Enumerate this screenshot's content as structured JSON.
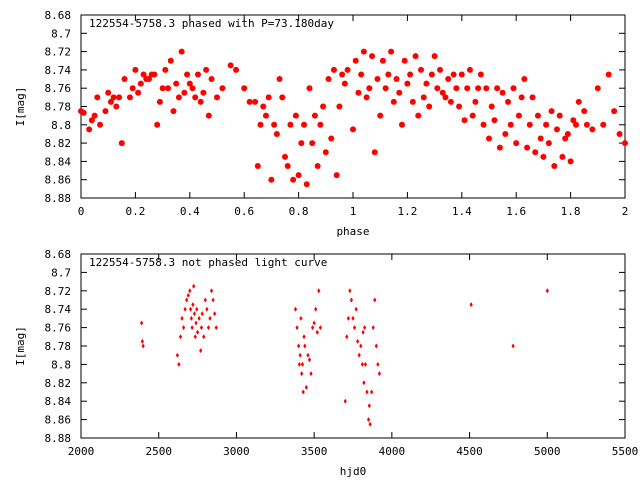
{
  "chart_data": [
    {
      "type": "scatter",
      "title": "122554-5758.3 phased with P=73.180day",
      "xlabel": "phase",
      "ylabel": "I[mag]",
      "xlim": [
        0,
        2
      ],
      "ylim": [
        8.88,
        8.68
      ],
      "y_inverted": true,
      "x_ticks": [
        0,
        0.2,
        0.4,
        0.6,
        0.8,
        1,
        1.2,
        1.4,
        1.6,
        1.8,
        2
      ],
      "x_tick_labels": [
        "0",
        "0.2",
        "0.4",
        "0.6",
        "0.8",
        "1",
        "1.2",
        "1.4",
        "1.6",
        "1.8",
        "2"
      ],
      "y_ticks": [
        8.68,
        8.7,
        8.72,
        8.74,
        8.76,
        8.78,
        8.8,
        8.82,
        8.84,
        8.86,
        8.88
      ],
      "y_tick_labels": [
        "8.68",
        "8.7",
        "8.72",
        "8.74",
        "8.76",
        "8.78",
        "8.8",
        "8.82",
        "8.84",
        "8.86",
        "8.88"
      ],
      "grid": false,
      "marker_color": "#ff0000",
      "points": [
        [
          0.0,
          8.785
        ],
        [
          0.01,
          8.787
        ],
        [
          0.03,
          8.805
        ],
        [
          0.04,
          8.795
        ],
        [
          0.05,
          8.79
        ],
        [
          0.06,
          8.77
        ],
        [
          0.07,
          8.8
        ],
        [
          0.09,
          8.785
        ],
        [
          0.1,
          8.765
        ],
        [
          0.11,
          8.775
        ],
        [
          0.12,
          8.77
        ],
        [
          0.13,
          8.78
        ],
        [
          0.14,
          8.77
        ],
        [
          0.15,
          8.82
        ],
        [
          0.16,
          8.75
        ],
        [
          0.18,
          8.77
        ],
        [
          0.19,
          8.76
        ],
        [
          0.2,
          8.74
        ],
        [
          0.21,
          8.765
        ],
        [
          0.22,
          8.755
        ],
        [
          0.23,
          8.745
        ],
        [
          0.24,
          8.75
        ],
        [
          0.25,
          8.75
        ],
        [
          0.26,
          8.745
        ],
        [
          0.27,
          8.745
        ],
        [
          0.28,
          8.8
        ],
        [
          0.29,
          8.775
        ],
        [
          0.3,
          8.76
        ],
        [
          0.31,
          8.74
        ],
        [
          0.32,
          8.76
        ],
        [
          0.33,
          8.73
        ],
        [
          0.34,
          8.785
        ],
        [
          0.35,
          8.755
        ],
        [
          0.36,
          8.77
        ],
        [
          0.37,
          8.72
        ],
        [
          0.38,
          8.765
        ],
        [
          0.39,
          8.745
        ],
        [
          0.4,
          8.755
        ],
        [
          0.41,
          8.76
        ],
        [
          0.42,
          8.77
        ],
        [
          0.43,
          8.745
        ],
        [
          0.44,
          8.775
        ],
        [
          0.45,
          8.765
        ],
        [
          0.46,
          8.74
        ],
        [
          0.47,
          8.79
        ],
        [
          0.48,
          8.75
        ],
        [
          0.5,
          8.77
        ],
        [
          0.52,
          8.76
        ],
        [
          0.55,
          8.735
        ],
        [
          0.57,
          8.74
        ],
        [
          0.6,
          8.76
        ],
        [
          0.62,
          8.775
        ],
        [
          0.64,
          8.775
        ],
        [
          0.65,
          8.845
        ],
        [
          0.66,
          8.8
        ],
        [
          0.67,
          8.78
        ],
        [
          0.68,
          8.79
        ],
        [
          0.69,
          8.77
        ],
        [
          0.7,
          8.86
        ],
        [
          0.71,
          8.8
        ],
        [
          0.72,
          8.81
        ],
        [
          0.73,
          8.75
        ],
        [
          0.74,
          8.77
        ],
        [
          0.75,
          8.835
        ],
        [
          0.76,
          8.845
        ],
        [
          0.77,
          8.8
        ],
        [
          0.78,
          8.86
        ],
        [
          0.79,
          8.79
        ],
        [
          0.8,
          8.855
        ],
        [
          0.81,
          8.82
        ],
        [
          0.82,
          8.8
        ],
        [
          0.83,
          8.865
        ],
        [
          0.84,
          8.76
        ],
        [
          0.85,
          8.82
        ],
        [
          0.86,
          8.79
        ],
        [
          0.87,
          8.845
        ],
        [
          0.88,
          8.8
        ],
        [
          0.89,
          8.78
        ],
        [
          0.9,
          8.83
        ],
        [
          0.91,
          8.75
        ],
        [
          0.92,
          8.815
        ],
        [
          0.93,
          8.74
        ],
        [
          0.94,
          8.855
        ],
        [
          0.95,
          8.78
        ],
        [
          0.96,
          8.745
        ],
        [
          0.97,
          8.755
        ],
        [
          0.98,
          8.74
        ],
        [
          1.0,
          8.805
        ],
        [
          1.01,
          8.73
        ],
        [
          1.02,
          8.765
        ],
        [
          1.03,
          8.745
        ],
        [
          1.04,
          8.72
        ],
        [
          1.05,
          8.77
        ],
        [
          1.06,
          8.76
        ],
        [
          1.07,
          8.725
        ],
        [
          1.08,
          8.83
        ],
        [
          1.09,
          8.75
        ],
        [
          1.1,
          8.79
        ],
        [
          1.11,
          8.73
        ],
        [
          1.12,
          8.76
        ],
        [
          1.13,
          8.745
        ],
        [
          1.14,
          8.72
        ],
        [
          1.15,
          8.775
        ],
        [
          1.16,
          8.75
        ],
        [
          1.17,
          8.765
        ],
        [
          1.18,
          8.8
        ],
        [
          1.19,
          8.73
        ],
        [
          1.2,
          8.755
        ],
        [
          1.21,
          8.745
        ],
        [
          1.22,
          8.775
        ],
        [
          1.23,
          8.725
        ],
        [
          1.24,
          8.79
        ],
        [
          1.25,
          8.74
        ],
        [
          1.26,
          8.77
        ],
        [
          1.27,
          8.755
        ],
        [
          1.28,
          8.78
        ],
        [
          1.29,
          8.745
        ],
        [
          1.3,
          8.725
        ],
        [
          1.31,
          8.76
        ],
        [
          1.32,
          8.74
        ],
        [
          1.33,
          8.765
        ],
        [
          1.34,
          8.77
        ],
        [
          1.35,
          8.75
        ],
        [
          1.36,
          8.775
        ],
        [
          1.37,
          8.745
        ],
        [
          1.38,
          8.76
        ],
        [
          1.39,
          8.78
        ],
        [
          1.4,
          8.745
        ],
        [
          1.41,
          8.795
        ],
        [
          1.42,
          8.76
        ],
        [
          1.43,
          8.74
        ],
        [
          1.44,
          8.79
        ],
        [
          1.45,
          8.775
        ],
        [
          1.46,
          8.76
        ],
        [
          1.47,
          8.745
        ],
        [
          1.48,
          8.8
        ],
        [
          1.49,
          8.76
        ],
        [
          1.5,
          8.815
        ],
        [
          1.51,
          8.78
        ],
        [
          1.52,
          8.795
        ],
        [
          1.53,
          8.76
        ],
        [
          1.54,
          8.825
        ],
        [
          1.55,
          8.765
        ],
        [
          1.56,
          8.81
        ],
        [
          1.57,
          8.775
        ],
        [
          1.58,
          8.8
        ],
        [
          1.59,
          8.76
        ],
        [
          1.6,
          8.82
        ],
        [
          1.61,
          8.79
        ],
        [
          1.62,
          8.77
        ],
        [
          1.63,
          8.75
        ],
        [
          1.64,
          8.825
        ],
        [
          1.65,
          8.8
        ],
        [
          1.66,
          8.77
        ],
        [
          1.67,
          8.83
        ],
        [
          1.68,
          8.79
        ],
        [
          1.69,
          8.815
        ],
        [
          1.7,
          8.835
        ],
        [
          1.71,
          8.8
        ],
        [
          1.72,
          8.82
        ],
        [
          1.73,
          8.785
        ],
        [
          1.74,
          8.845
        ],
        [
          1.75,
          8.805
        ],
        [
          1.76,
          8.79
        ],
        [
          1.77,
          8.835
        ],
        [
          1.78,
          8.815
        ],
        [
          1.79,
          8.81
        ],
        [
          1.8,
          8.84
        ],
        [
          1.81,
          8.795
        ],
        [
          1.82,
          8.8
        ],
        [
          1.83,
          8.775
        ],
        [
          1.85,
          8.785
        ],
        [
          1.86,
          8.8
        ],
        [
          1.88,
          8.805
        ],
        [
          1.9,
          8.76
        ],
        [
          1.92,
          8.8
        ],
        [
          1.94,
          8.745
        ],
        [
          1.96,
          8.785
        ],
        [
          1.98,
          8.81
        ],
        [
          2.0,
          8.82
        ]
      ]
    },
    {
      "type": "scatter",
      "title": "122554-5758.3 not phased light curve",
      "xlabel": "hjd0",
      "ylabel": "I[mag]",
      "xlim": [
        2000,
        5500
      ],
      "ylim": [
        8.88,
        8.68
      ],
      "y_inverted": true,
      "x_ticks": [
        2000,
        2500,
        3000,
        3500,
        4000,
        4500,
        5000,
        5500
      ],
      "x_tick_labels": [
        "2000",
        "2500",
        "3000",
        "3500",
        "4000",
        "4500",
        "5000",
        "5500"
      ],
      "y_ticks": [
        8.68,
        8.7,
        8.72,
        8.74,
        8.76,
        8.78,
        8.8,
        8.82,
        8.84,
        8.86,
        8.88
      ],
      "y_tick_labels": [
        "8.68",
        "8.7",
        "8.72",
        "8.74",
        "8.76",
        "8.78",
        "8.8",
        "8.82",
        "8.84",
        "8.86",
        "8.88"
      ],
      "grid": false,
      "marker_color": "#ff0000",
      "points": [
        [
          2390,
          8.755
        ],
        [
          2395,
          8.775
        ],
        [
          2400,
          8.78
        ],
        [
          2620,
          8.79
        ],
        [
          2630,
          8.8
        ],
        [
          2640,
          8.77
        ],
        [
          2650,
          8.75
        ],
        [
          2660,
          8.76
        ],
        [
          2670,
          8.74
        ],
        [
          2680,
          8.73
        ],
        [
          2690,
          8.725
        ],
        [
          2700,
          8.72
        ],
        [
          2705,
          8.74
        ],
        [
          2710,
          8.75
        ],
        [
          2715,
          8.76
        ],
        [
          2720,
          8.735
        ],
        [
          2725,
          8.715
        ],
        [
          2730,
          8.745
        ],
        [
          2735,
          8.77
        ],
        [
          2740,
          8.755
        ],
        [
          2745,
          8.74
        ],
        [
          2750,
          8.765
        ],
        [
          2760,
          8.75
        ],
        [
          2770,
          8.785
        ],
        [
          2775,
          8.76
        ],
        [
          2780,
          8.745
        ],
        [
          2790,
          8.77
        ],
        [
          2800,
          8.73
        ],
        [
          2810,
          8.74
        ],
        [
          2820,
          8.76
        ],
        [
          2830,
          8.75
        ],
        [
          2840,
          8.72
        ],
        [
          2850,
          8.73
        ],
        [
          2860,
          8.745
        ],
        [
          2870,
          8.76
        ],
        [
          3380,
          8.74
        ],
        [
          3390,
          8.76
        ],
        [
          3400,
          8.78
        ],
        [
          3405,
          8.8
        ],
        [
          3410,
          8.79
        ],
        [
          3415,
          8.75
        ],
        [
          3420,
          8.81
        ],
        [
          3425,
          8.8
        ],
        [
          3430,
          8.83
        ],
        [
          3435,
          8.77
        ],
        [
          3440,
          8.78
        ],
        [
          3450,
          8.825
        ],
        [
          3460,
          8.79
        ],
        [
          3470,
          8.795
        ],
        [
          3480,
          8.81
        ],
        [
          3490,
          8.76
        ],
        [
          3500,
          8.755
        ],
        [
          3510,
          8.74
        ],
        [
          3520,
          8.765
        ],
        [
          3530,
          8.72
        ],
        [
          3540,
          8.76
        ],
        [
          3700,
          8.84
        ],
        [
          3710,
          8.77
        ],
        [
          3720,
          8.75
        ],
        [
          3730,
          8.72
        ],
        [
          3740,
          8.73
        ],
        [
          3750,
          8.75
        ],
        [
          3760,
          8.76
        ],
        [
          3770,
          8.74
        ],
        [
          3780,
          8.775
        ],
        [
          3790,
          8.79
        ],
        [
          3800,
          8.78
        ],
        [
          3810,
          8.8
        ],
        [
          3815,
          8.765
        ],
        [
          3820,
          8.82
        ],
        [
          3825,
          8.76
        ],
        [
          3830,
          8.8
        ],
        [
          3840,
          8.83
        ],
        [
          3850,
          8.86
        ],
        [
          3855,
          8.845
        ],
        [
          3860,
          8.865
        ],
        [
          3870,
          8.83
        ],
        [
          3880,
          8.76
        ],
        [
          3890,
          8.73
        ],
        [
          3900,
          8.78
        ],
        [
          3910,
          8.8
        ],
        [
          3920,
          8.81
        ],
        [
          4510,
          8.735
        ],
        [
          4780,
          8.78
        ],
        [
          5000,
          8.72
        ]
      ]
    }
  ]
}
